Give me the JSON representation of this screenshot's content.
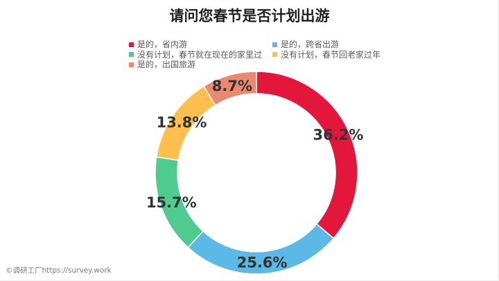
{
  "footer": {
    "copyright": "©调研工厂https://survey.work"
  },
  "chart_data": {
    "type": "pie",
    "donut": true,
    "title": "请问您春节是否计划出游",
    "categories": [
      "是的，省内游",
      "是的，跨省出游",
      "没有计划，春节就在现在的家里过",
      "没有计划，春节回老家过年",
      "是的，出国旅游"
    ],
    "values": [
      36.2,
      25.6,
      15.7,
      13.8,
      8.7
    ],
    "data_labels": [
      "36.2%",
      "25.6%",
      "15.7%",
      "13.8%",
      "8.7%"
    ],
    "colors": [
      "#E2173B",
      "#5CB8E4",
      "#4FCB8F",
      "#FFBF4E",
      "#E98A6E"
    ],
    "legend_position": "top"
  }
}
